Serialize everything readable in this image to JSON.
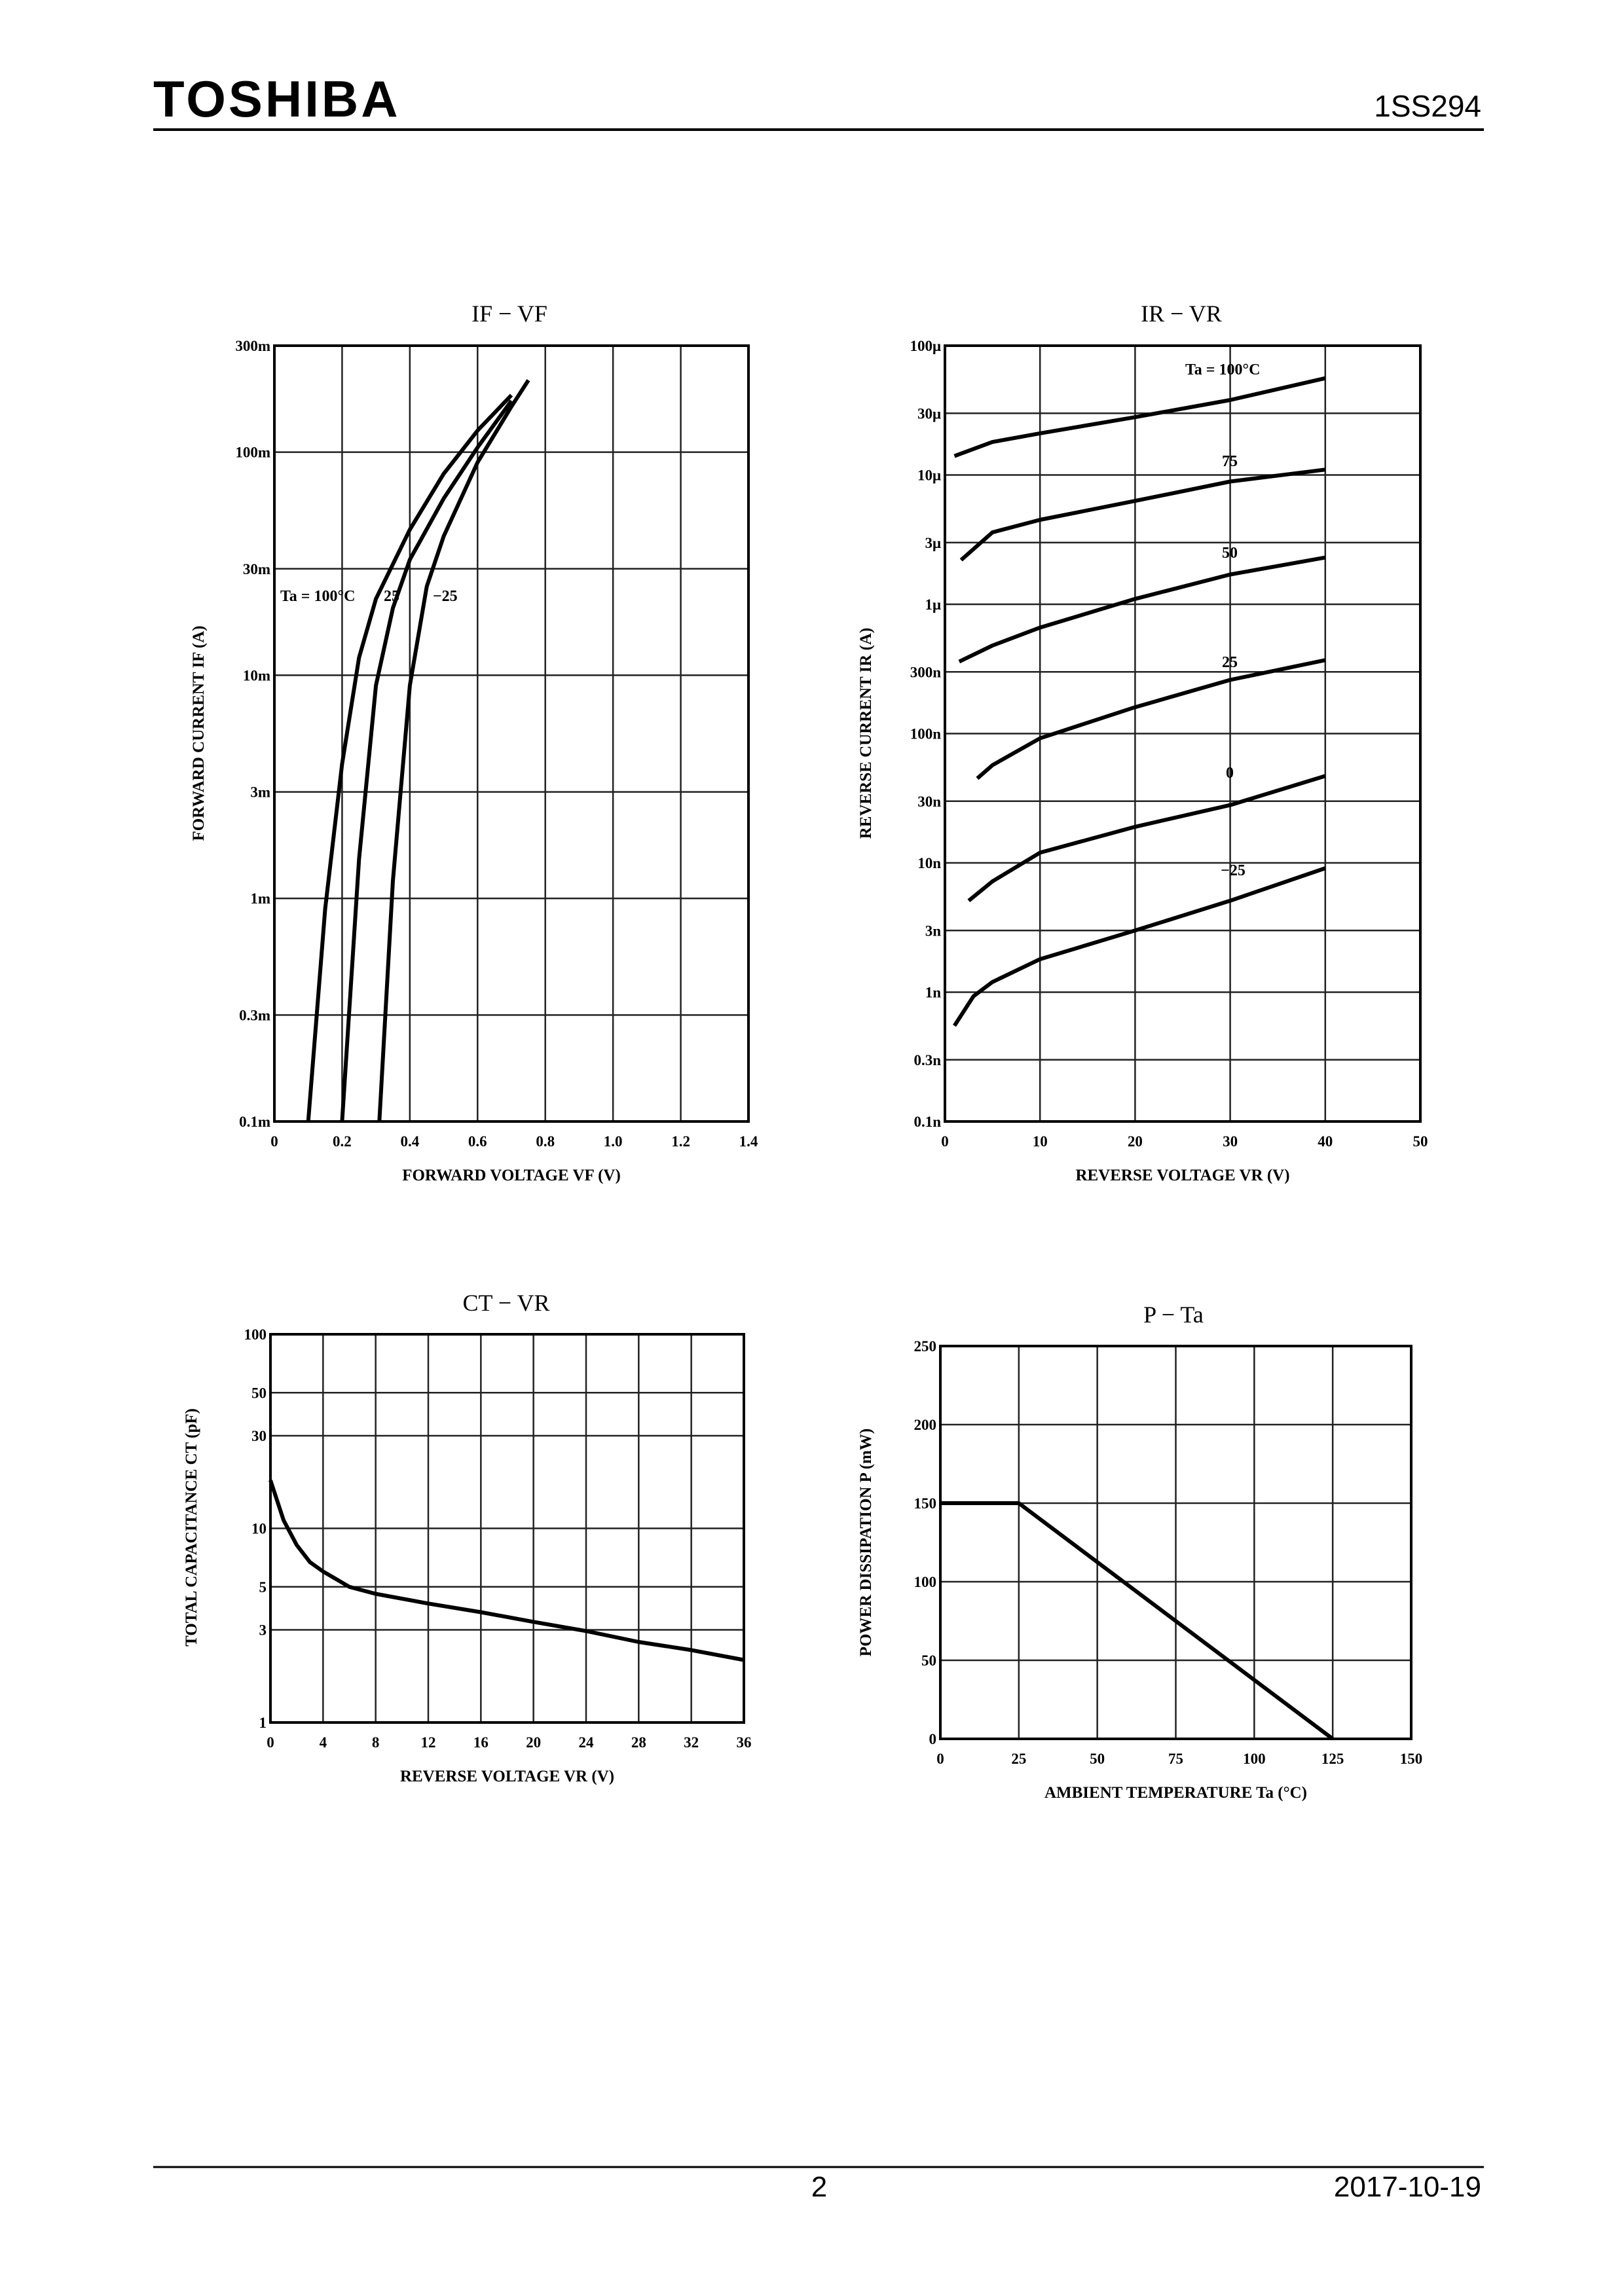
{
  "header": {
    "logo": "TOSHIBA",
    "part": "1SS294"
  },
  "footer": {
    "page": "2",
    "date": "2017-10-19"
  },
  "chart_data": [
    {
      "type": "line",
      "title": "IF − VF",
      "x_label": "FORWARD VOLTAGE VF (V)",
      "y_label": "FORWARD CURRENT IF (A)",
      "xlim": [
        0,
        1.4
      ],
      "ylim": [
        0.0001,
        0.3
      ],
      "log_y": true,
      "grid": true,
      "xticks": [
        0,
        0.2,
        0.4,
        0.6,
        0.8,
        {
          "value": 1,
          "label": "1.0"
        },
        1.2,
        1.4
      ],
      "yticks": [
        {
          "value": 0.0001,
          "label": "0.1m"
        },
        {
          "value": 0.0003,
          "label": "0.3m"
        },
        {
          "value": 0.001,
          "label": "1m"
        },
        {
          "value": 0.003,
          "label": "3m"
        },
        {
          "value": 0.01,
          "label": "10m"
        },
        {
          "value": 0.03,
          "label": "30m"
        },
        {
          "value": 0.1,
          "label": "100m"
        },
        {
          "value": 0.3,
          "label": "300m"
        }
      ],
      "series": [
        {
          "name": "Ta = 100°C",
          "color": "#000000",
          "x": [
            0.1,
            0.15,
            0.2,
            0.25,
            0.3,
            0.4,
            0.5,
            0.6,
            0.7
          ],
          "values": [
            0.0001,
            0.0009,
            0.004,
            0.012,
            0.022,
            0.045,
            0.08,
            0.125,
            0.18
          ]
        },
        {
          "name": "25",
          "color": "#000000",
          "x": [
            0.2,
            0.25,
            0.3,
            0.35,
            0.4,
            0.5,
            0.6,
            0.7
          ],
          "values": [
            0.0001,
            0.0015,
            0.009,
            0.02,
            0.033,
            0.062,
            0.105,
            0.17
          ]
        },
        {
          "name": "−25",
          "color": "#000000",
          "x": [
            0.31,
            0.35,
            0.4,
            0.45,
            0.5,
            0.6,
            0.7,
            0.75
          ],
          "values": [
            0.0001,
            0.0012,
            0.009,
            0.025,
            0.042,
            0.09,
            0.16,
            0.21
          ]
        }
      ]
    },
    {
      "type": "line",
      "title": "IR − VR",
      "x_label": "REVERSE VOLTAGE VR (V)",
      "y_label": "REVERSE CURRENT IR (A)",
      "xlim": [
        0,
        50
      ],
      "ylim": [
        1e-10,
        0.0001
      ],
      "log_y": true,
      "grid": true,
      "xticks": [
        0,
        10,
        20,
        30,
        40,
        50
      ],
      "yticks": [
        {
          "value": 1e-10,
          "label": "0.1n"
        },
        {
          "value": 3e-10,
          "label": "0.3n"
        },
        {
          "value": 1e-09,
          "label": "1n"
        },
        {
          "value": 3e-09,
          "label": "3n"
        },
        {
          "value": 1e-08,
          "label": "10n"
        },
        {
          "value": 3e-08,
          "label": "30n"
        },
        {
          "value": 1e-07,
          "label": "100n"
        },
        {
          "value": 3e-07,
          "label": "300n"
        },
        {
          "value": 1e-06,
          "label": "1μ"
        },
        {
          "value": 3e-06,
          "label": "3μ"
        },
        {
          "value": 1e-05,
          "label": "10μ"
        },
        {
          "value": 3e-05,
          "label": "30μ"
        },
        {
          "value": 0.0001,
          "label": "100μ"
        }
      ],
      "series": [
        {
          "name": "Ta = 100°C",
          "color": "#000000",
          "x": [
            1,
            5,
            10,
            20,
            30,
            40
          ],
          "values": [
            1.4e-05,
            1.8e-05,
            2.1e-05,
            2.8e-05,
            3.8e-05,
            5.6e-05
          ]
        },
        {
          "name": "75",
          "color": "#000000",
          "x": [
            1.7,
            5,
            10,
            20,
            30,
            40
          ],
          "values": [
            2.2e-06,
            3.6e-06,
            4.5e-06,
            6.3e-06,
            8.9e-06,
            1.1e-05
          ]
        },
        {
          "name": "50",
          "color": "#000000",
          "x": [
            1.5,
            5,
            10,
            20,
            30,
            40
          ],
          "values": [
            3.6e-07,
            4.8e-07,
            6.6e-07,
            1.1e-06,
            1.7e-06,
            2.3e-06
          ]
        },
        {
          "name": "25",
          "color": "#000000",
          "x": [
            3.4,
            5,
            10,
            20,
            30,
            40
          ],
          "values": [
            4.5e-08,
            5.7e-08,
            9.2e-08,
            1.6e-07,
            2.6e-07,
            3.7e-07
          ]
        },
        {
          "name": "0",
          "color": "#000000",
          "x": [
            2.5,
            5,
            10,
            20,
            30,
            40
          ],
          "values": [
            5.1e-09,
            7.2e-09,
            1.2e-08,
            1.9e-08,
            2.8e-08,
            4.7e-08
          ]
        },
        {
          "name": "−25",
          "color": "#000000",
          "x": [
            1,
            3,
            5,
            10,
            20,
            30,
            40
          ],
          "values": [
            5.5e-10,
            9.3e-10,
            1.2e-09,
            1.8e-09,
            3e-09,
            5.1e-09,
            9.1e-09
          ]
        }
      ]
    },
    {
      "type": "line",
      "title": "CT − VR",
      "x_label": "REVERSE VOLTAGE VR (V)",
      "y_label": "TOTAL CAPACITANCE CT (pF)",
      "xlim": [
        0,
        36
      ],
      "ylim": [
        1,
        100
      ],
      "log_y": true,
      "grid": true,
      "xticks": [
        0,
        4,
        8,
        12,
        16,
        20,
        24,
        28,
        32,
        36
      ],
      "yticks": [
        1,
        3,
        5,
        10,
        30,
        50,
        100
      ],
      "series": [
        {
          "color": "#000000",
          "x": [
            0,
            1,
            2,
            3,
            4,
            6,
            8,
            12,
            16,
            20,
            24,
            28,
            32,
            36
          ],
          "values": [
            17.7,
            11,
            8.2,
            6.7,
            6,
            5,
            4.6,
            4.1,
            3.7,
            3.3,
            2.96,
            2.6,
            2.36,
            2.1
          ]
        }
      ]
    },
    {
      "type": "line",
      "title": "P − Ta",
      "x_label": "AMBIENT TEMPERATURE Ta (°C)",
      "y_label": "POWER DISSIPATION P (mW)",
      "xlim": [
        0,
        150
      ],
      "ylim": [
        0,
        250
      ],
      "log_y": false,
      "grid": true,
      "xticks": [
        0,
        25,
        50,
        75,
        100,
        125,
        150
      ],
      "yticks": [
        0,
        50,
        100,
        150,
        200,
        250
      ],
      "series": [
        {
          "color": "#000000",
          "x": [
            0,
            25,
            125
          ],
          "values": [
            150,
            150,
            0
          ]
        }
      ]
    }
  ]
}
